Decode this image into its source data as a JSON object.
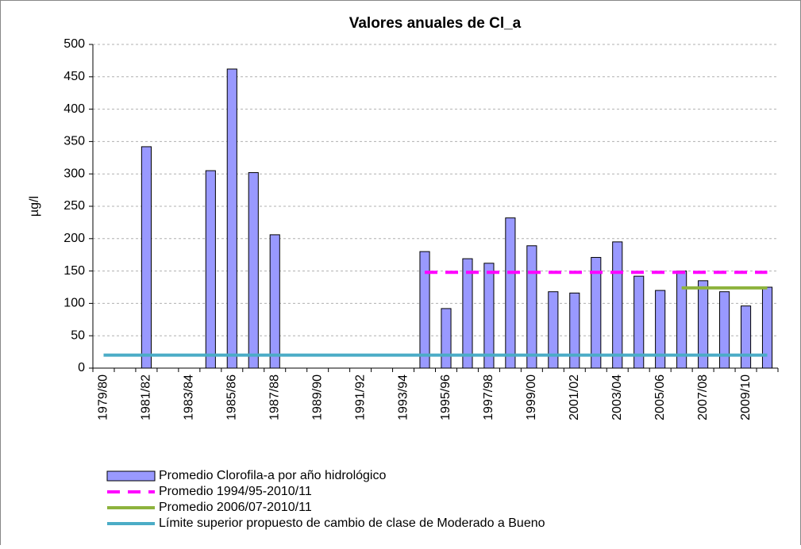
{
  "chart_data": {
    "type": "bar",
    "title": "Valores anuales de Cl_a",
    "y_label": "µg/l",
    "categories": [
      "1979/80",
      null,
      "1981/82",
      null,
      "1983/84",
      null,
      "1985/86",
      null,
      "1987/88",
      null,
      "1989/90",
      null,
      "1991/92",
      null,
      "1993/94",
      null,
      "1995/96",
      null,
      "1997/98",
      null,
      "1999/00",
      null,
      "2001/02",
      null,
      "2003/04",
      null,
      "2005/06",
      null,
      "2007/08",
      null,
      "2009/10",
      null
    ],
    "series": [
      {
        "name": "Promedio Clorofila-a por año hidrológico",
        "type": "bar",
        "color": "#9999ff",
        "values": [
          null,
          null,
          342,
          null,
          null,
          305,
          462,
          302,
          206,
          null,
          null,
          null,
          null,
          null,
          null,
          180,
          92,
          169,
          162,
          232,
          189,
          118,
          116,
          171,
          195,
          142,
          120,
          150,
          135,
          118,
          96,
          125
        ]
      },
      {
        "name": "Promedio 1994/95-2010/11",
        "type": "line",
        "dashed": true,
        "color": "#ff00ff",
        "values": [
          null,
          null,
          null,
          null,
          null,
          null,
          null,
          null,
          null,
          null,
          null,
          null,
          null,
          null,
          null,
          148,
          148,
          148,
          148,
          148,
          148,
          148,
          148,
          148,
          148,
          148,
          148,
          148,
          148,
          148,
          148,
          148
        ]
      },
      {
        "name": "Promedio 2006/07-2010/11",
        "type": "line",
        "dashed": false,
        "color": "#8db33d",
        "values": [
          null,
          null,
          null,
          null,
          null,
          null,
          null,
          null,
          null,
          null,
          null,
          null,
          null,
          null,
          null,
          null,
          null,
          null,
          null,
          null,
          null,
          null,
          null,
          null,
          null,
          null,
          null,
          124,
          124,
          124,
          124,
          124
        ]
      },
      {
        "name": "Límite superior propuesto de cambio de clase de Moderado a Bueno",
        "type": "line",
        "dashed": false,
        "color": "#4bacc6",
        "values": [
          20,
          20,
          20,
          20,
          20,
          20,
          20,
          20,
          20,
          20,
          20,
          20,
          20,
          20,
          20,
          20,
          20,
          20,
          20,
          20,
          20,
          20,
          20,
          20,
          20,
          20,
          20,
          20,
          20,
          20,
          20,
          20
        ]
      }
    ],
    "ylim": [
      0,
      500
    ],
    "yticks": [
      0,
      50,
      100,
      150,
      200,
      250,
      300,
      350,
      400,
      450,
      500
    ],
    "grid": true
  }
}
